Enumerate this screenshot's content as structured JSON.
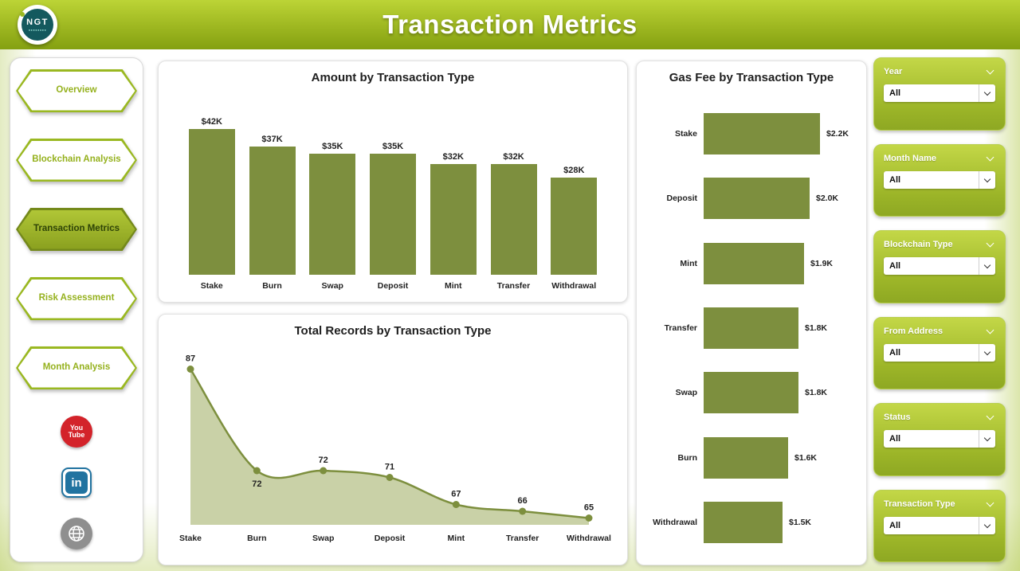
{
  "header": {
    "title": "Transaction Metrics",
    "logo_text": "NGT"
  },
  "sidebar": {
    "items": [
      {
        "label": "Overview",
        "active": false
      },
      {
        "label": "Blockchain Analysis",
        "active": false
      },
      {
        "label": "Transaction Metrics",
        "active": true
      },
      {
        "label": "Risk Assessment",
        "active": false
      },
      {
        "label": "Month Analysis",
        "active": false
      }
    ],
    "social": [
      {
        "icon": "youtube-icon",
        "text_top": "You",
        "text_bottom": "Tube"
      },
      {
        "icon": "linkedin-icon",
        "text": "in"
      },
      {
        "icon": "web-globe-icon"
      }
    ]
  },
  "filters": [
    {
      "title": "Year",
      "value": "All"
    },
    {
      "title": "Month Name",
      "value": "All"
    },
    {
      "title": "Blockchain Type",
      "value": "All"
    },
    {
      "title": "From Address",
      "value": "All"
    },
    {
      "title": "Status",
      "value": "All"
    },
    {
      "title": "Transaction Type",
      "value": "All"
    }
  ],
  "colors": {
    "accent": "#9ab821",
    "bar": "#7d8f3e",
    "line": "#7d8f3e",
    "area_fill": "#c9d1a7",
    "header_top": "#bcd436",
    "header_bottom": "#84a011"
  },
  "chart_data": [
    {
      "type": "bar",
      "title": "Amount by Transaction Type",
      "categories": [
        "Stake",
        "Burn",
        "Swap",
        "Deposit",
        "Mint",
        "Transfer",
        "Withdrawal"
      ],
      "values": [
        42,
        37,
        35,
        35,
        32,
        32,
        28
      ],
      "labels": [
        "$42K",
        "$37K",
        "$35K",
        "$35K",
        "$32K",
        "$32K",
        "$28K"
      ],
      "xlabel": "",
      "ylabel": "",
      "ylim": [
        0,
        45
      ],
      "grid": false,
      "legend": false
    },
    {
      "type": "area",
      "title": "Total Records by Transaction Type",
      "categories": [
        "Stake",
        "Burn",
        "Swap",
        "Deposit",
        "Mint",
        "Transfer",
        "Withdrawal"
      ],
      "values": [
        87,
        72,
        72,
        71,
        67,
        66,
        65
      ],
      "xlabel": "",
      "ylabel": "",
      "ylim": [
        64,
        88
      ],
      "grid": false,
      "legend": false,
      "label_below_indices": [
        1
      ]
    },
    {
      "type": "bar-horizontal",
      "title": "Gas Fee by Transaction Type",
      "categories": [
        "Stake",
        "Deposit",
        "Mint",
        "Transfer",
        "Swap",
        "Burn",
        "Withdrawal"
      ],
      "values": [
        2.2,
        2.0,
        1.9,
        1.8,
        1.8,
        1.6,
        1.5
      ],
      "labels": [
        "$2.2K",
        "$2.0K",
        "$1.9K",
        "$1.8K",
        "$1.8K",
        "$1.6K",
        "$1.5K"
      ],
      "xlabel": "",
      "ylabel": "",
      "xlim": [
        0,
        2.4
      ],
      "grid": false,
      "legend": false
    }
  ]
}
